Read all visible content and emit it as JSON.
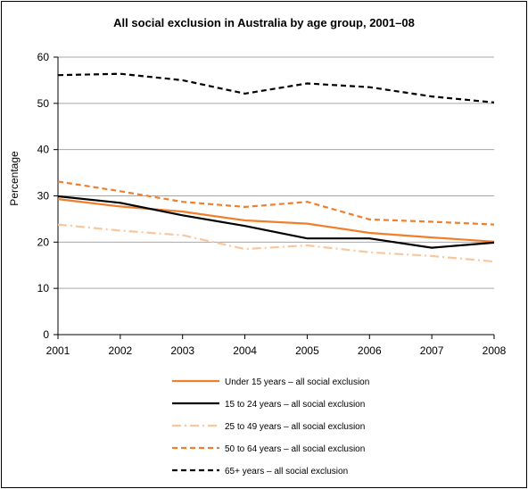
{
  "chart_data": {
    "type": "line",
    "title": "All social exclusion in Australia by age group, 2001–08",
    "ylabel": "Percentage",
    "xlabel": "",
    "x": [
      "2001",
      "2002",
      "2003",
      "2004",
      "2005",
      "2006",
      "2007",
      "2008"
    ],
    "ylim": [
      0,
      60
    ],
    "yticks": [
      "0",
      "10",
      "20",
      "30",
      "40",
      "50",
      "60"
    ],
    "grid": true,
    "legend_position": "bottom",
    "series": [
      {
        "name": "Under 15 years – all social exclusion",
        "values": [
          29.3,
          27.7,
          26.6,
          24.7,
          24.0,
          22.0,
          21.0,
          20.1
        ],
        "color": "#F07F2D",
        "dash": "solid"
      },
      {
        "name": "15 to 24 years – all social exclusion",
        "values": [
          29.9,
          28.5,
          25.8,
          23.5,
          20.8,
          20.8,
          18.8,
          19.9
        ],
        "color": "#000000",
        "dash": "solid"
      },
      {
        "name": "25 to 49 years – all social exclusion",
        "values": [
          23.8,
          22.5,
          21.5,
          18.5,
          19.3,
          17.8,
          17.0,
          15.8
        ],
        "color": "#F9C79D",
        "dash": "dashdot"
      },
      {
        "name": "50 to 64 years – all social exclusion",
        "values": [
          33.1,
          31.0,
          28.7,
          27.6,
          28.7,
          24.9,
          24.4,
          23.8
        ],
        "color": "#F07F2D",
        "dash": "dashed"
      },
      {
        "name": "65+ years – all social exclusion",
        "values": [
          56.1,
          56.4,
          55.0,
          52.1,
          54.3,
          53.5,
          51.5,
          50.2
        ],
        "color": "#000000",
        "dash": "dashed"
      }
    ]
  }
}
